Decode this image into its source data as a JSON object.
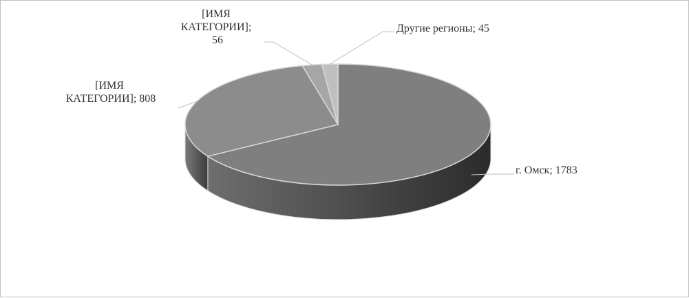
{
  "chart_data": {
    "type": "pie",
    "title": "",
    "legend": "none",
    "slices": [
      {
        "label": "г. Омск",
        "value": 1783,
        "label_text": "г. Омск; 1783",
        "color": "#7f7f7f",
        "side_dark": "#2b2b2b",
        "side_light": "#6e6e6e"
      },
      {
        "label": "[ИМЯ КАТЕГОРИИ]",
        "value": 808,
        "label_lines": [
          "[ИМЯ",
          "КАТЕГОРИИ]; 808"
        ],
        "color": "#8c8c8c",
        "side_dark": "#3c3c3c",
        "side_light": "#7a7a7a"
      },
      {
        "label": "[ИМЯ КАТЕГОРИИ]",
        "value": 56,
        "label_lines": [
          "[ИМЯ",
          "КАТЕГОРИИ];",
          "56"
        ],
        "color": "#a6a6a6",
        "side_dark": "#555555",
        "side_light": "#8f8f8f"
      },
      {
        "label": "Другие регионы",
        "value": 45,
        "label_text": "Другие регионы; 45",
        "color": "#bfbfbf",
        "side_dark": "#666666",
        "side_light": "#a0a0a0"
      }
    ],
    "edge_color": "#d9d9d9",
    "leader_color": "#bfbfbf"
  }
}
